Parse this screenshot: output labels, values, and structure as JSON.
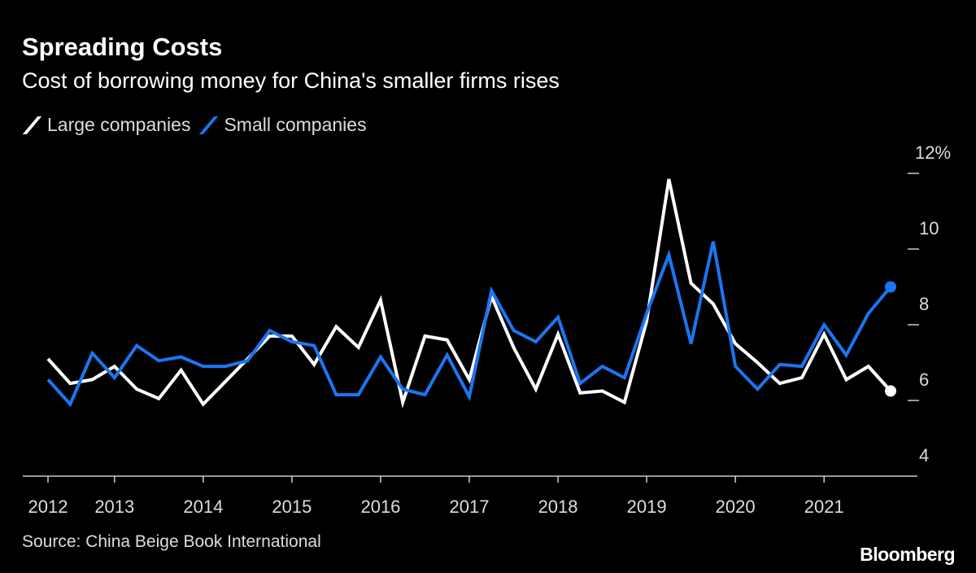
{
  "chart_data": {
    "type": "line",
    "title": "Spreading Costs",
    "subtitle": "Cost of borrowing money for China's smaller firms rises",
    "source": "Source: China Beige Book International",
    "logo": "Bloomberg",
    "x": [
      "2012Q2",
      "2012Q3",
      "2012Q4",
      "2013Q1",
      "2013Q2",
      "2013Q3",
      "2013Q4",
      "2014Q1",
      "2014Q2",
      "2014Q3",
      "2014Q4",
      "2015Q1",
      "2015Q2",
      "2015Q3",
      "2015Q4",
      "2016Q1",
      "2016Q2",
      "2016Q3",
      "2016Q4",
      "2017Q1",
      "2017Q2",
      "2017Q3",
      "2017Q4",
      "2018Q1",
      "2018Q2",
      "2018Q3",
      "2018Q4",
      "2019Q1",
      "2019Q2",
      "2019Q3",
      "2019Q4",
      "2020Q1",
      "2020Q2",
      "2020Q3",
      "2020Q4",
      "2021Q1",
      "2021Q2",
      "2021Q3",
      "2021Q4"
    ],
    "x_ticks": [
      {
        "label": "2012",
        "at": "2012Q2"
      },
      {
        "label": "2013",
        "at": "2013Q1"
      },
      {
        "label": "2014",
        "at": "2014Q1"
      },
      {
        "label": "2015",
        "at": "2015Q1"
      },
      {
        "label": "2016",
        "at": "2016Q1"
      },
      {
        "label": "2017",
        "at": "2017Q1"
      },
      {
        "label": "2018",
        "at": "2018Q1"
      },
      {
        "label": "2019",
        "at": "2019Q1"
      },
      {
        "label": "2020",
        "at": "2020Q1"
      },
      {
        "label": "2021",
        "at": "2021Q1"
      }
    ],
    "y_ticks": [
      {
        "value": 12,
        "label": "12%"
      },
      {
        "value": 10,
        "label": "10"
      },
      {
        "value": 8,
        "label": "8"
      },
      {
        "value": 6,
        "label": "6"
      },
      {
        "value": 4,
        "label": "4"
      }
    ],
    "ylim": [
      4,
      12
    ],
    "y_axis_side": "right",
    "grid": false,
    "legend_placement": "top-left",
    "series": [
      {
        "name": "Large companies",
        "color": "#ffffff",
        "values": [
          7.1,
          6.45,
          6.55,
          6.9,
          6.3,
          6.05,
          6.8,
          5.9,
          6.5,
          7.1,
          7.7,
          7.7,
          6.95,
          7.95,
          7.4,
          8.65,
          5.95,
          7.7,
          7.6,
          6.55,
          8.75,
          7.4,
          6.3,
          7.75,
          6.2,
          6.25,
          5.95,
          8.1,
          11.85,
          9.1,
          8.55,
          7.5,
          7.0,
          6.45,
          6.6,
          7.75,
          6.55,
          6.9,
          6.25
        ]
      },
      {
        "name": "Small companies",
        "color": "#1a76f2",
        "values": [
          6.55,
          5.9,
          7.25,
          6.6,
          7.45,
          7.05,
          7.15,
          6.9,
          6.9,
          7.05,
          7.85,
          7.55,
          7.45,
          6.15,
          6.15,
          7.15,
          6.3,
          6.15,
          7.2,
          6.1,
          8.9,
          7.85,
          7.55,
          8.2,
          6.45,
          6.9,
          6.6,
          8.3,
          9.85,
          7.5,
          10.2,
          6.9,
          6.3,
          6.95,
          6.9,
          8.0,
          7.2,
          8.3,
          9.0
        ]
      }
    ]
  }
}
